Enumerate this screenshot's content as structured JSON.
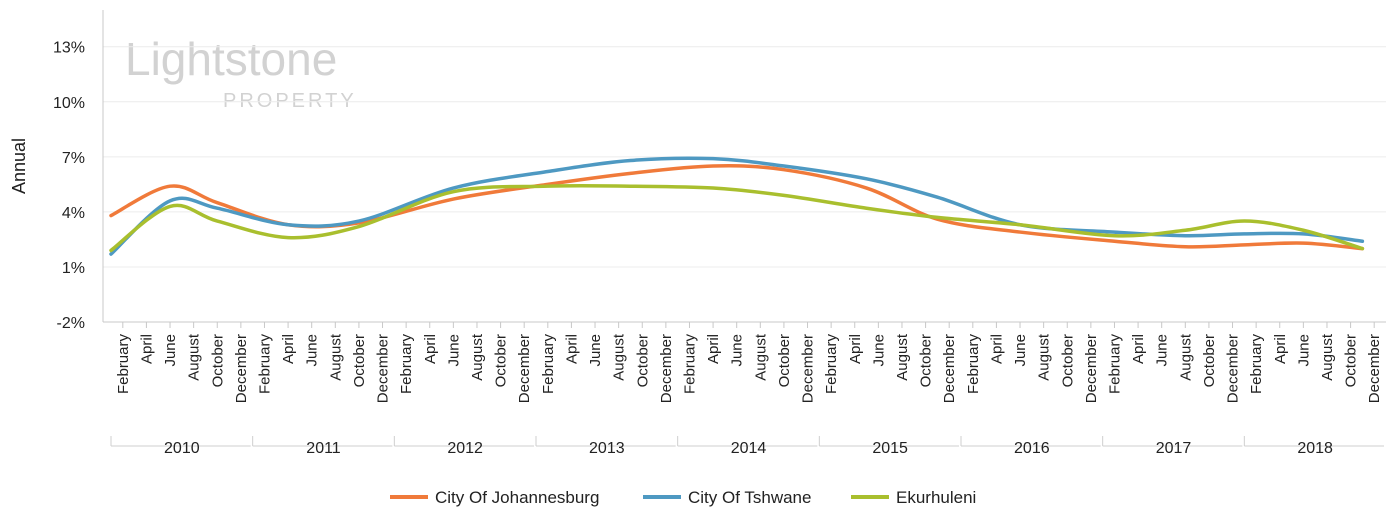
{
  "watermark": {
    "brand": "Lightstone",
    "sub": "PROPERTY"
  },
  "legend": {
    "items": [
      {
        "name": "City Of Johannesburg",
        "color": "#F07A3A"
      },
      {
        "name": "City Of Tshwane",
        "color": "#4E99C2"
      },
      {
        "name": "Ekurhuleni",
        "color": "#A9BF2E"
      }
    ]
  },
  "chart_data": {
    "type": "line",
    "ylabel": "Annual",
    "xlabel": "",
    "ylim": [
      -2,
      15
    ],
    "yticks": [
      -2,
      1,
      4,
      7,
      10,
      13
    ],
    "ytick_labels": [
      "-2%",
      "1%",
      "4%",
      "7%",
      "10%",
      "13%"
    ],
    "grid": true,
    "legend_position": "bottom",
    "month_labels": [
      "February",
      "April",
      "June",
      "August",
      "October",
      "December"
    ],
    "years": [
      "2010",
      "2011",
      "2012",
      "2013",
      "2014",
      "2015",
      "2016",
      "2017",
      "2018"
    ],
    "x_points": [
      "Jan 2010",
      "Jun 2010",
      "Oct 2010",
      "Apr 2011",
      "Oct 2011",
      "Jun 2012",
      "Feb 2013",
      "Sep 2013",
      "Apr 2014",
      "Oct 2014",
      "May 2015",
      "Nov 2015",
      "Jun 2016",
      "Feb 2017",
      "Aug 2017",
      "Jan 2018",
      "Jun 2018",
      "Nov 2018"
    ],
    "series": [
      {
        "name": "City Of Johannesburg",
        "color": "#F07A3A",
        "values": [
          3.8,
          5.4,
          4.5,
          3.3,
          3.4,
          4.7,
          5.5,
          6.1,
          6.5,
          6.3,
          5.3,
          3.6,
          2.9,
          2.4,
          2.1,
          2.2,
          2.3,
          2.0
        ]
      },
      {
        "name": "City Of Tshwane",
        "color": "#4E99C2",
        "values": [
          1.7,
          4.6,
          4.2,
          3.3,
          3.5,
          5.3,
          6.2,
          6.8,
          6.9,
          6.5,
          5.8,
          4.8,
          3.3,
          2.9,
          2.7,
          2.8,
          2.8,
          2.4
        ]
      },
      {
        "name": "Ekurhuleni",
        "color": "#A9BF2E",
        "values": [
          1.9,
          4.3,
          3.5,
          2.6,
          3.2,
          5.1,
          5.4,
          5.4,
          5.3,
          4.9,
          4.2,
          3.7,
          3.3,
          2.7,
          3.0,
          3.5,
          3.0,
          2.0
        ]
      }
    ]
  }
}
